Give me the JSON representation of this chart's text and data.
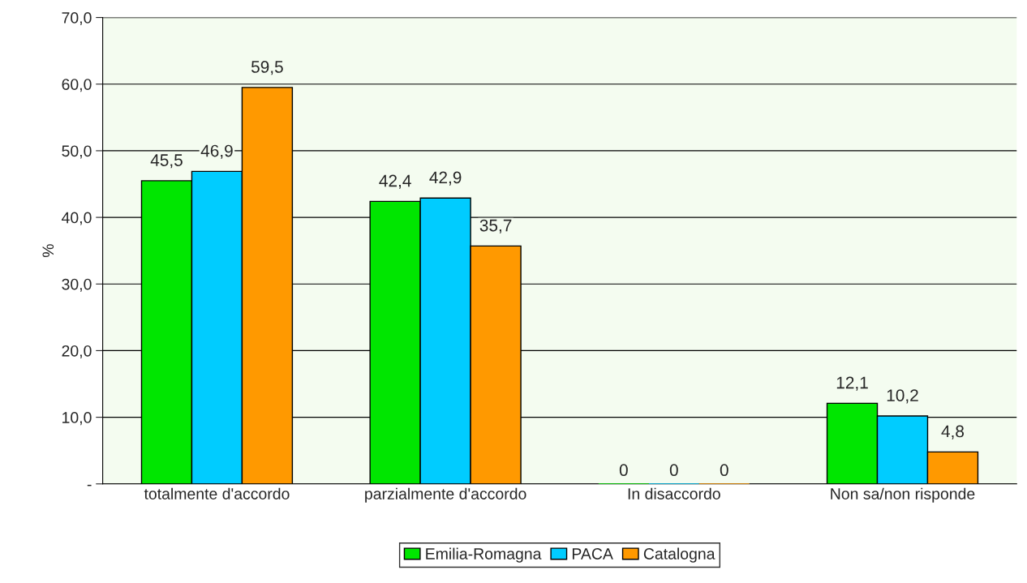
{
  "chart_data": {
    "type": "bar",
    "ylabel": "%",
    "categories": [
      "totalmente d'accordo",
      "parzialmente d'accordo",
      "In disaccordo",
      "Non sa/non risponde"
    ],
    "series": [
      {
        "name": "Emilia-Romagna",
        "color": "#00e600",
        "values": [
          45.5,
          42.4,
          0,
          12.1
        ],
        "value_labels": [
          "45,5",
          "42,4",
          "0",
          "12,1"
        ]
      },
      {
        "name": "PACA",
        "color": "#00ccff",
        "values": [
          46.9,
          42.9,
          0,
          10.2
        ],
        "value_labels": [
          "46,9",
          "42,9",
          "0",
          "10,2"
        ]
      },
      {
        "name": "Catalogna",
        "color": "#ff9900",
        "values": [
          59.5,
          35.7,
          0,
          4.8
        ],
        "value_labels": [
          "59,5",
          "35,7",
          "0",
          "4,8"
        ]
      }
    ],
    "ylim": [
      0,
      70
    ],
    "yticks": [
      {
        "value": 0,
        "label": "-"
      },
      {
        "value": 10,
        "label": "10,0"
      },
      {
        "value": 20,
        "label": "20,0"
      },
      {
        "value": 30,
        "label": "30,0"
      },
      {
        "value": 40,
        "label": "40,0"
      },
      {
        "value": 50,
        "label": "50,0"
      },
      {
        "value": 60,
        "label": "60,0"
      },
      {
        "value": 70,
        "label": "70,0"
      }
    ],
    "grid": "y",
    "legend": "bottom"
  }
}
